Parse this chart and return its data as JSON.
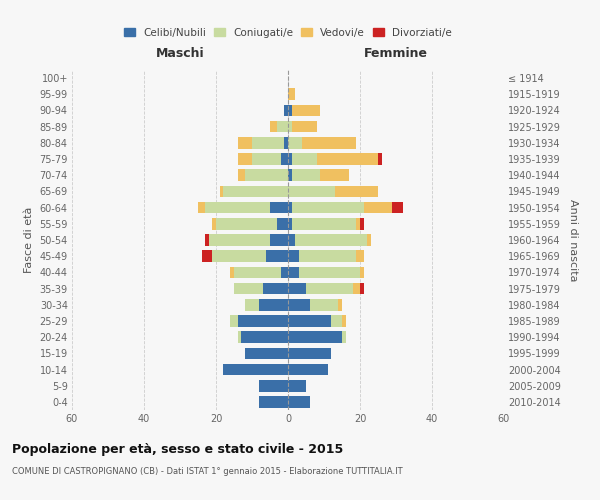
{
  "age_groups": [
    "0-4",
    "5-9",
    "10-14",
    "15-19",
    "20-24",
    "25-29",
    "30-34",
    "35-39",
    "40-44",
    "45-49",
    "50-54",
    "55-59",
    "60-64",
    "65-69",
    "70-74",
    "75-79",
    "80-84",
    "85-89",
    "90-94",
    "95-99",
    "100+"
  ],
  "birth_years": [
    "2010-2014",
    "2005-2009",
    "2000-2004",
    "1995-1999",
    "1990-1994",
    "1985-1989",
    "1980-1984",
    "1975-1979",
    "1970-1974",
    "1965-1969",
    "1960-1964",
    "1955-1959",
    "1950-1954",
    "1945-1949",
    "1940-1944",
    "1935-1939",
    "1930-1934",
    "1925-1929",
    "1920-1924",
    "1915-1919",
    "≤ 1914"
  ],
  "male": {
    "celibi": [
      8,
      8,
      18,
      12,
      13,
      14,
      8,
      7,
      2,
      6,
      5,
      3,
      5,
      0,
      0,
      2,
      1,
      0,
      1,
      0,
      0
    ],
    "coniugati": [
      0,
      0,
      0,
      0,
      1,
      2,
      4,
      8,
      13,
      15,
      17,
      17,
      18,
      18,
      12,
      8,
      9,
      3,
      0,
      0,
      0
    ],
    "vedovi": [
      0,
      0,
      0,
      0,
      0,
      0,
      0,
      0,
      1,
      0,
      0,
      1,
      2,
      1,
      2,
      4,
      4,
      2,
      0,
      0,
      0
    ],
    "divorziati": [
      0,
      0,
      0,
      0,
      0,
      0,
      0,
      0,
      0,
      3,
      1,
      0,
      0,
      0,
      0,
      0,
      0,
      0,
      0,
      0,
      0
    ]
  },
  "female": {
    "nubili": [
      6,
      5,
      11,
      12,
      15,
      12,
      6,
      5,
      3,
      3,
      2,
      1,
      1,
      0,
      1,
      1,
      0,
      0,
      1,
      0,
      0
    ],
    "coniugate": [
      0,
      0,
      0,
      0,
      1,
      3,
      8,
      13,
      17,
      16,
      20,
      18,
      20,
      13,
      8,
      7,
      4,
      1,
      0,
      0,
      0
    ],
    "vedove": [
      0,
      0,
      0,
      0,
      0,
      1,
      1,
      2,
      1,
      2,
      1,
      1,
      8,
      12,
      8,
      17,
      15,
      7,
      8,
      2,
      0
    ],
    "divorziate": [
      0,
      0,
      0,
      0,
      0,
      0,
      0,
      1,
      0,
      0,
      0,
      1,
      3,
      0,
      0,
      1,
      0,
      0,
      0,
      0,
      0
    ]
  },
  "colors": {
    "celibi": "#3a6fa8",
    "coniugati": "#c8dba0",
    "vedovi": "#f0c060",
    "divorziati": "#cc2222"
  },
  "title": "Popolazione per età, sesso e stato civile - 2015",
  "subtitle": "COMUNE DI CASTROPIGNANO (CB) - Dati ISTAT 1° gennaio 2015 - Elaborazione TUTTITALIA.IT",
  "xlabel_left": "Maschi",
  "xlabel_right": "Femmine",
  "ylabel_left": "Fasce di età",
  "ylabel_right": "Anni di nascita",
  "xlim": 60,
  "bg_color": "#f7f7f7",
  "legend_labels": [
    "Celibi/Nubili",
    "Coniugati/e",
    "Vedovi/e",
    "Divorziati/e"
  ]
}
